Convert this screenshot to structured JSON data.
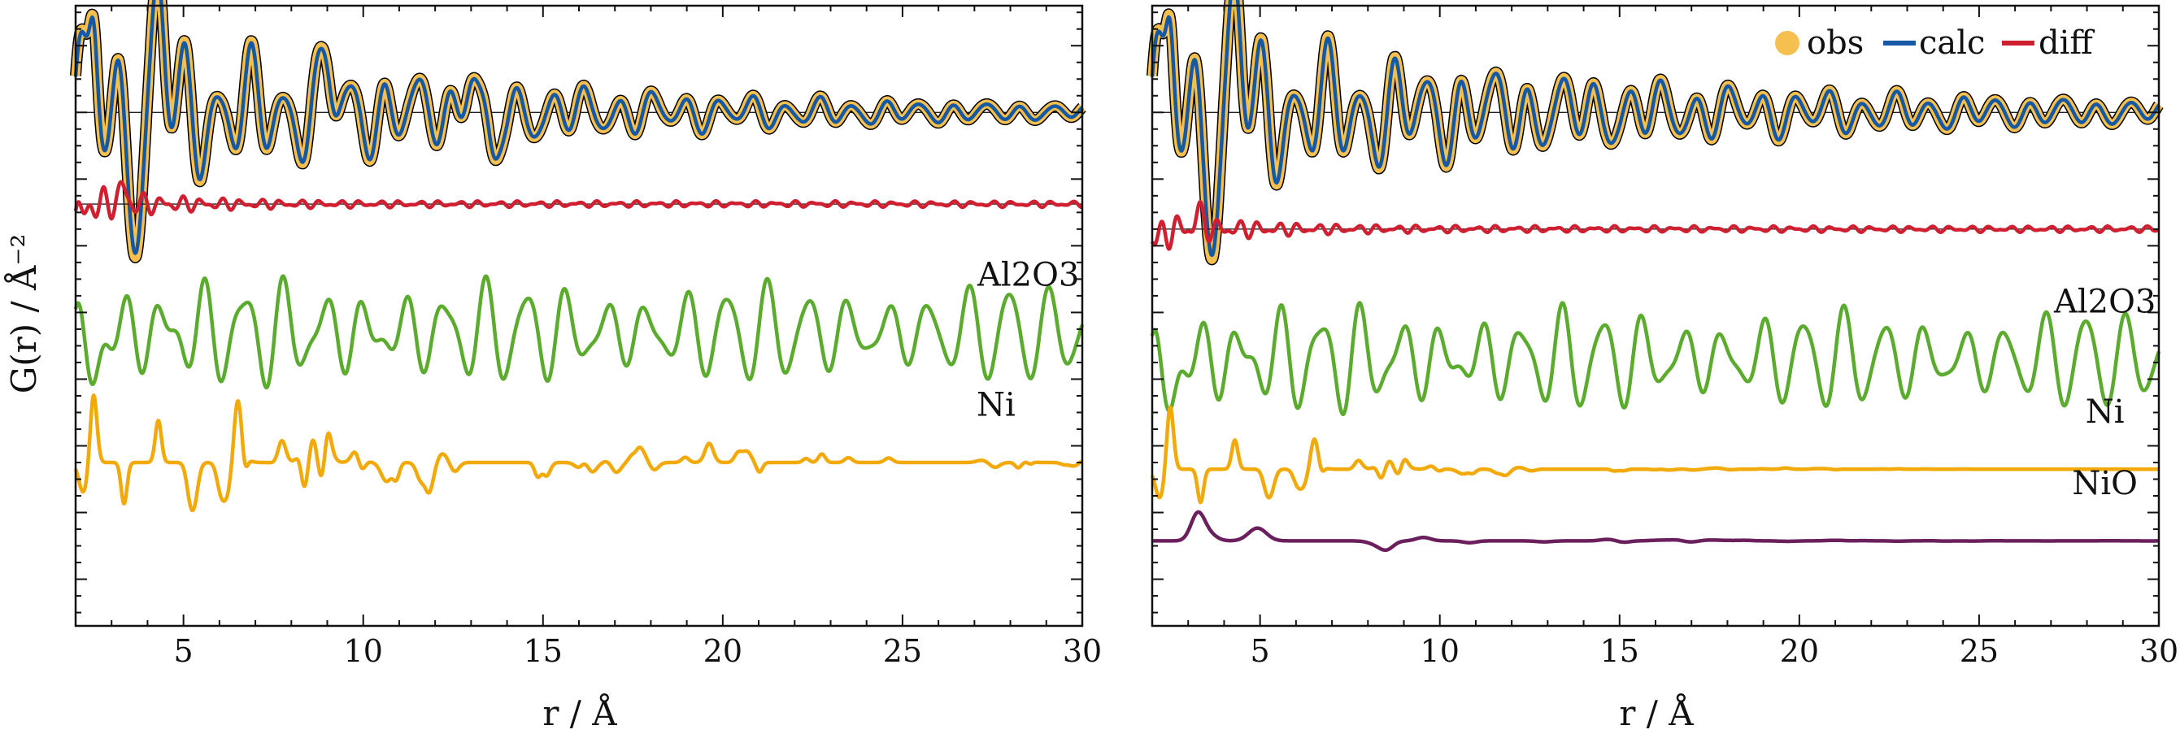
{
  "figure": {
    "ylabel": "G(r) / Å⁻²",
    "xlabel": "r / Å",
    "legend": {
      "obs": "obs",
      "calc": "calc",
      "diff": "diff",
      "position": "top-right of right panel"
    }
  },
  "colors": {
    "obs": "#f5c04f",
    "calc": "#1559a4",
    "diff": "#d01f30",
    "al2o3": "#5aab2e",
    "ni": "#f2a90a",
    "nio": "#6b1f5d",
    "envelope": "#000000"
  },
  "chart_data": [
    {
      "type": "line",
      "panel": "left",
      "xlim": [
        2,
        30
      ],
      "xticks": [
        5,
        10,
        15,
        20,
        25,
        30
      ],
      "grid": false,
      "series": [
        {
          "key": "obs",
          "offset": 0,
          "label_x": null,
          "label": ""
        },
        {
          "key": "calc",
          "offset": 0,
          "label_x": null,
          "label": ""
        },
        {
          "key": "diff",
          "offset": -2.75,
          "label_x": null,
          "label": ""
        },
        {
          "key": "al2o3",
          "offset": -6.6,
          "label_x": 28.5,
          "label": "Al2O3"
        },
        {
          "key": "ni",
          "offset": -10.5,
          "label_x": 27.6,
          "label": "Ni"
        }
      ]
    },
    {
      "type": "line",
      "panel": "right",
      "xlim": [
        2,
        30
      ],
      "xticks": [
        5,
        10,
        15,
        20,
        25,
        30
      ],
      "grid": false,
      "series": [
        {
          "key": "obs",
          "offset": 0,
          "label_x": null,
          "label": ""
        },
        {
          "key": "calc",
          "offset": 0,
          "label_x": null,
          "label": ""
        },
        {
          "key": "diff",
          "offset": -3.5,
          "label_x": null,
          "label": ""
        },
        {
          "key": "al2o3",
          "offset": -7.4,
          "label_x": 28.5,
          "label": "Al2O3"
        },
        {
          "key": "ni",
          "offset": -10.7,
          "label_x": 28.5,
          "label": "Ni"
        },
        {
          "key": "nio",
          "offset": -12.85,
          "label_x": 28.5,
          "label": "NiO"
        }
      ]
    }
  ]
}
